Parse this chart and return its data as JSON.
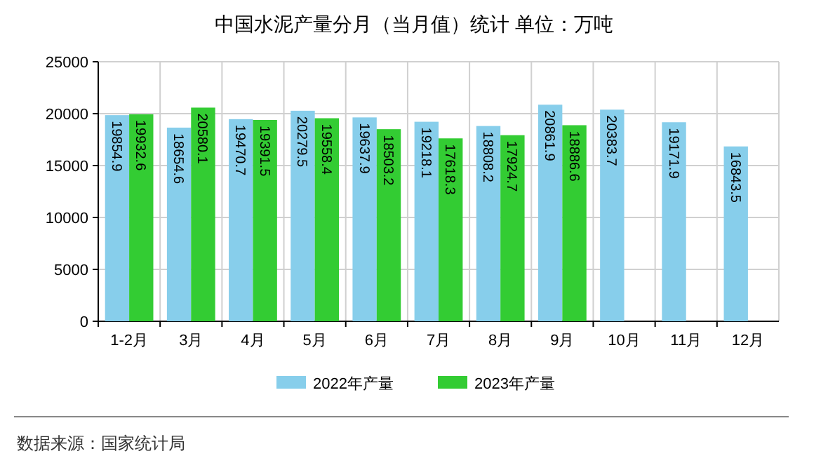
{
  "chart_data": {
    "type": "bar",
    "title": "中国水泥产量分月（当月值）统计 单位：万吨",
    "categories": [
      "1-2月",
      "3月",
      "4月",
      "5月",
      "6月",
      "7月",
      "8月",
      "9月",
      "10月",
      "11月",
      "12月"
    ],
    "series": [
      {
        "name": "2022年产量",
        "color": "#87ceeb",
        "values": [
          19854.9,
          18654.6,
          19470.7,
          20279.5,
          19637.9,
          19218.1,
          18808.2,
          20861.9,
          20383.7,
          19171.9,
          16843.5
        ]
      },
      {
        "name": "2023年产量",
        "color": "#33cc33",
        "values": [
          19932.6,
          20580.1,
          19391.5,
          19558.4,
          18503.2,
          17618.3,
          17924.7,
          18886.6,
          null,
          null,
          null
        ]
      }
    ],
    "ylim": [
      0,
      25000
    ],
    "yticks": [
      0,
      5000,
      10000,
      15000,
      20000,
      25000
    ],
    "grid": true,
    "legend": "bottom",
    "data_labels": true,
    "annotations": [
      "数据来源：国家统计局"
    ]
  }
}
